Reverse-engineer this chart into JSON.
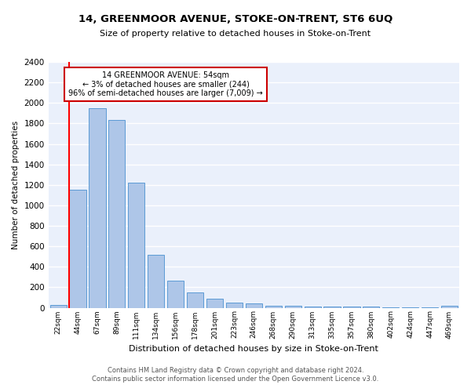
{
  "title": "14, GREENMOOR AVENUE, STOKE-ON-TRENT, ST6 6UQ",
  "subtitle": "Size of property relative to detached houses in Stoke-on-Trent",
  "xlabel": "Distribution of detached houses by size in Stoke-on-Trent",
  "ylabel": "Number of detached properties",
  "categories": [
    "22sqm",
    "44sqm",
    "67sqm",
    "89sqm",
    "111sqm",
    "134sqm",
    "156sqm",
    "178sqm",
    "201sqm",
    "223sqm",
    "246sqm",
    "268sqm",
    "290sqm",
    "313sqm",
    "335sqm",
    "357sqm",
    "380sqm",
    "402sqm",
    "424sqm",
    "447sqm",
    "469sqm"
  ],
  "values": [
    30,
    1150,
    1950,
    1830,
    1220,
    520,
    265,
    150,
    85,
    47,
    40,
    22,
    20,
    15,
    12,
    10,
    8,
    6,
    5,
    4,
    20
  ],
  "bar_color": "#aec6e8",
  "bar_edge_color": "#5b9bd5",
  "bg_color": "#eaf0fb",
  "grid_color": "#ffffff",
  "annotation_title": "14 GREENMOOR AVENUE: 54sqm",
  "annotation_line1": "← 3% of detached houses are smaller (244)",
  "annotation_line2": "96% of semi-detached houses are larger (7,009) →",
  "annotation_box_color": "#ffffff",
  "annotation_border_color": "#cc0000",
  "footer_line1": "Contains HM Land Registry data © Crown copyright and database right 2024.",
  "footer_line2": "Contains public sector information licensed under the Open Government Licence v3.0.",
  "ylim": [
    0,
    2400
  ],
  "yticks": [
    0,
    200,
    400,
    600,
    800,
    1000,
    1200,
    1400,
    1600,
    1800,
    2000,
    2200,
    2400
  ]
}
